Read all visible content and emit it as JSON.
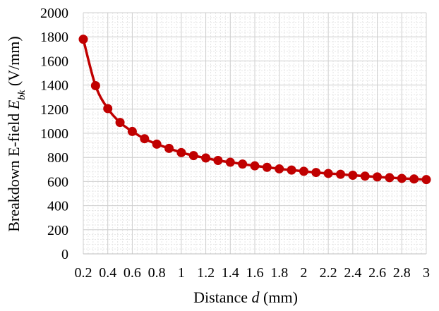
{
  "chart_data": {
    "type": "line",
    "title": "",
    "xlabel": {
      "prefix": "Distance ",
      "var": "d",
      "suffix": " (mm)"
    },
    "ylabel": {
      "prefix": "Breakdown E-field ",
      "var": "E",
      "sub": "bk",
      "suffix": " (V/mm)"
    },
    "xlim": [
      0.2,
      3.0
    ],
    "ylim": [
      0,
      2000
    ],
    "x_ticks": [
      0.2,
      0.4,
      0.6,
      0.8,
      1,
      1.2,
      1.4,
      1.6,
      1.8,
      2,
      2.2,
      2.4,
      2.6,
      2.8,
      3
    ],
    "x_tick_labels": [
      "0.2",
      "0.4",
      "0.6",
      "0.8",
      "1",
      "1.2",
      "1.4",
      "1.6",
      "1.8",
      "2",
      "2.2",
      "2.4",
      "2.6",
      "2.8",
      "3"
    ],
    "y_ticks": [
      0,
      200,
      400,
      600,
      800,
      1000,
      1200,
      1400,
      1600,
      1800,
      2000
    ],
    "y_tick_labels": [
      "0",
      "200",
      "400",
      "600",
      "800",
      "1000",
      "1200",
      "1400",
      "1600",
      "1800",
      "2000"
    ],
    "grid": true,
    "minor_grid": true,
    "legend": "none",
    "series": [
      {
        "color": "#c00000",
        "marker": "circle",
        "smooth": true,
        "x": [
          0.2,
          0.3,
          0.4,
          0.5,
          0.6,
          0.7,
          0.8,
          0.9,
          1.0,
          1.1,
          1.2,
          1.3,
          1.4,
          1.5,
          1.6,
          1.7,
          1.8,
          1.9,
          2.0,
          2.1,
          2.2,
          2.3,
          2.4,
          2.5,
          2.6,
          2.7,
          2.8,
          2.9,
          3.0
        ],
        "y": [
          1780,
          1395,
          1205,
          1090,
          1015,
          955,
          910,
          875,
          840,
          815,
          795,
          775,
          760,
          745,
          730,
          718,
          705,
          695,
          685,
          675,
          667,
          660,
          652,
          645,
          638,
          632,
          626,
          621,
          616
        ]
      }
    ]
  }
}
